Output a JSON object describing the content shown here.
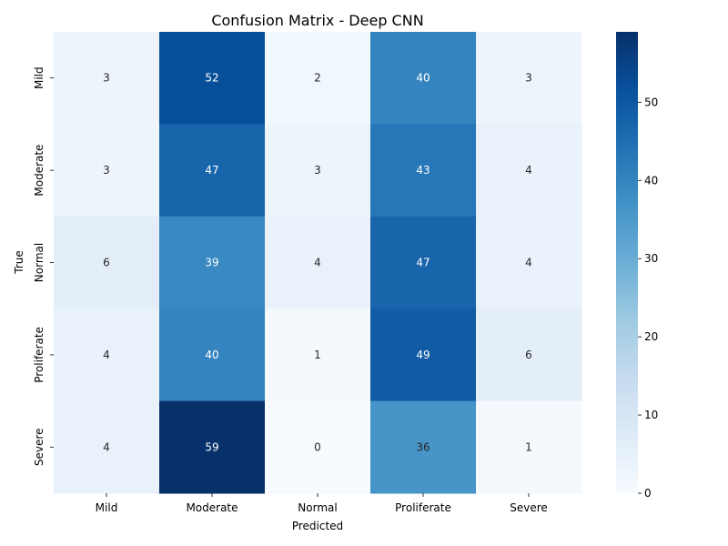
{
  "chart_data": {
    "type": "heatmap",
    "title": "Confusion Matrix - Deep CNN",
    "xlabel": "Predicted",
    "ylabel": "True",
    "x_categories": [
      "Mild",
      "Moderate",
      "Normal",
      "Proliferate",
      "Severe"
    ],
    "y_categories": [
      "Mild",
      "Moderate",
      "Normal",
      "Proliferate",
      "Severe"
    ],
    "values": [
      [
        3,
        52,
        2,
        40,
        3
      ],
      [
        3,
        47,
        3,
        43,
        4
      ],
      [
        6,
        39,
        4,
        47,
        4
      ],
      [
        4,
        40,
        1,
        49,
        6
      ],
      [
        4,
        59,
        0,
        36,
        1
      ]
    ],
    "colormap": "Blues",
    "colorbar": {
      "min": 0,
      "max": 59,
      "ticks": [
        0,
        10,
        20,
        30,
        40,
        50
      ]
    },
    "colors": {
      "low": "#f7fbff",
      "high": "#08306b",
      "text_dark": "#262626",
      "text_light": "#ffffff"
    }
  }
}
